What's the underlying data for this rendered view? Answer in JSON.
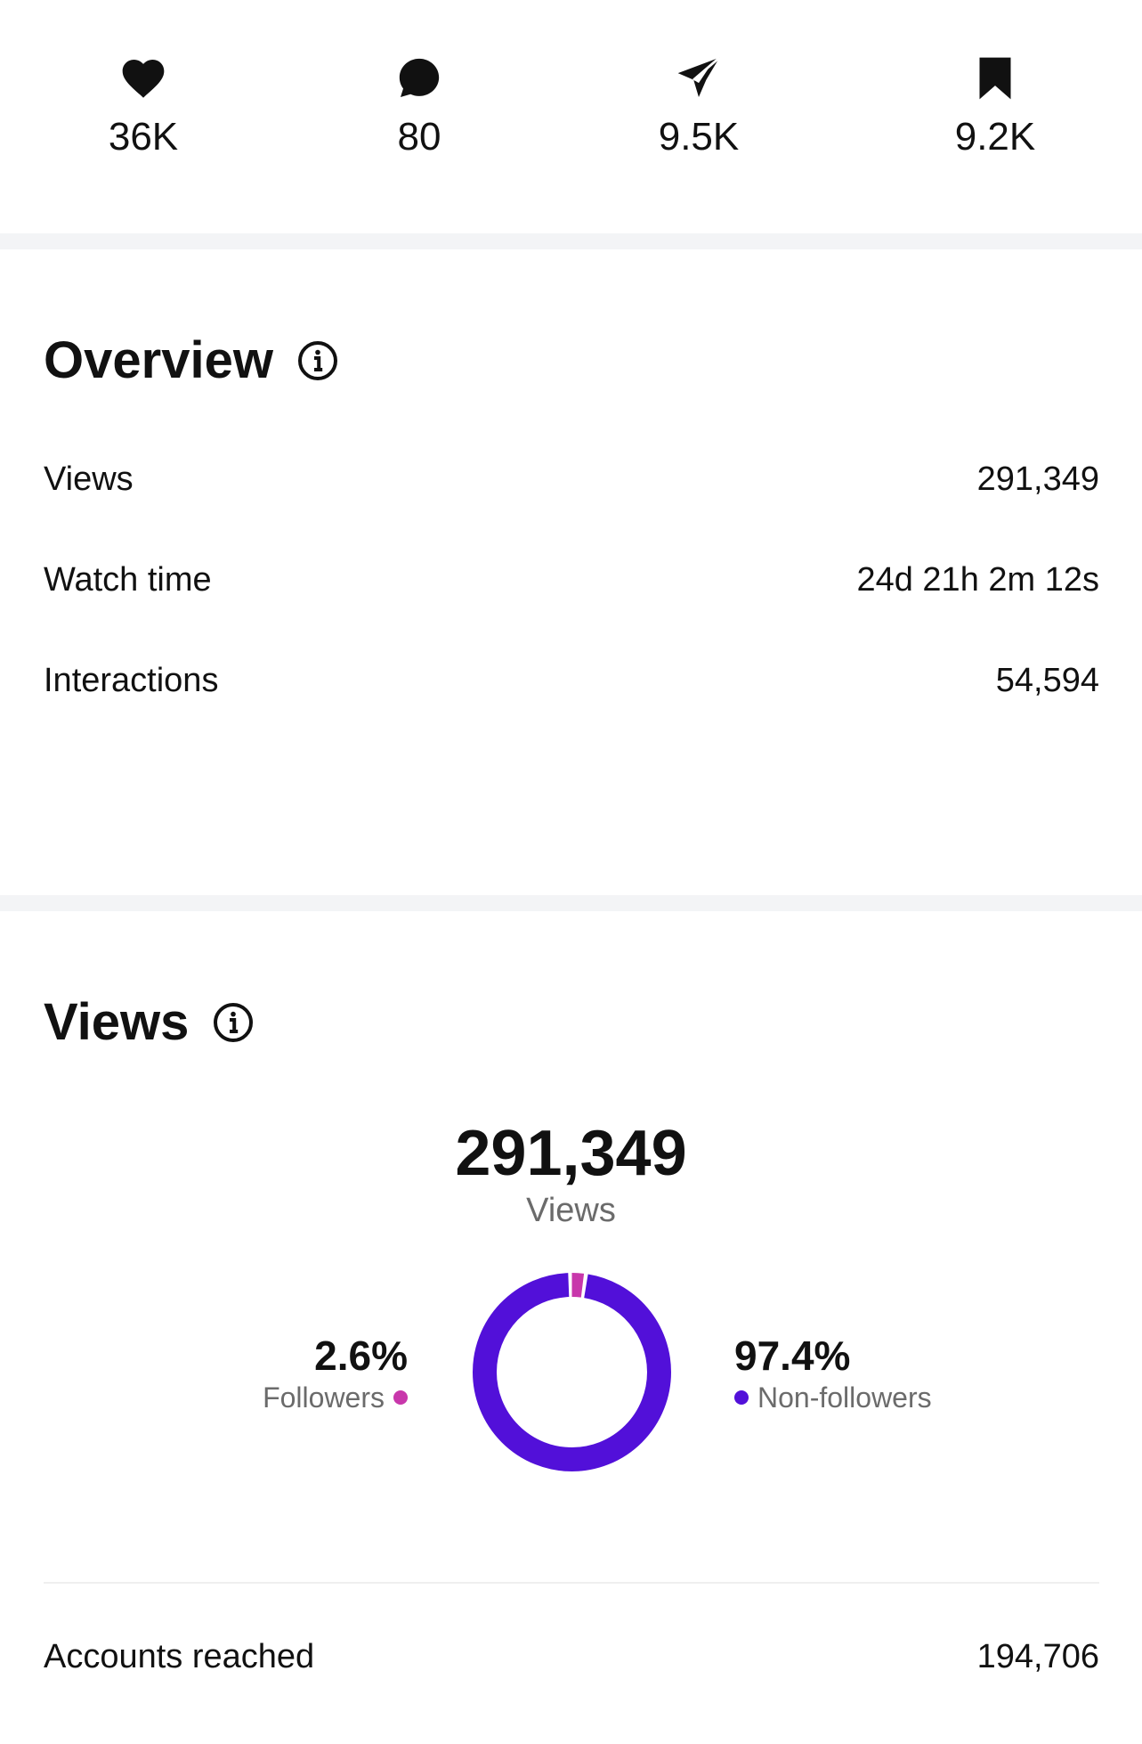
{
  "stats": [
    {
      "icon": "heart-icon",
      "value": "36K"
    },
    {
      "icon": "comment-icon",
      "value": "80"
    },
    {
      "icon": "share-icon",
      "value": "9.5K"
    },
    {
      "icon": "bookmark-icon",
      "value": "9.2K"
    }
  ],
  "overview": {
    "title": "Overview",
    "rows": [
      {
        "label": "Views",
        "value": "291,349"
      },
      {
        "label": "Watch time",
        "value": "24d 21h 2m 12s"
      },
      {
        "label": "Interactions",
        "value": "54,594"
      }
    ]
  },
  "views": {
    "title": "Views",
    "total": "291,349",
    "total_label": "Views",
    "followers": {
      "percent": "2.6%",
      "label": "Followers",
      "fraction": 0.026,
      "color": "#c837ab"
    },
    "non_followers": {
      "percent": "97.4%",
      "label": "Non-followers",
      "fraction": 0.974,
      "color": "#5210d9"
    },
    "accounts_reached_label": "Accounts reached",
    "accounts_reached_value": "194,706"
  },
  "colors": {
    "text": "#111111",
    "muted": "#6b6b6b",
    "band": "#f3f4f6"
  }
}
